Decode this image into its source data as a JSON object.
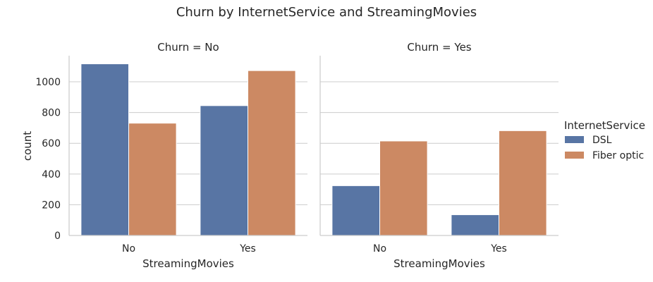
{
  "chart_data": {
    "type": "bar",
    "title": "Churn by InternetService and StreamingMovies",
    "ylabel": "count",
    "ylim": [
      0,
      1170
    ],
    "yticks": [
      0,
      200,
      400,
      600,
      800,
      1000
    ],
    "grid": true,
    "legend": {
      "title": "InternetService",
      "placement": "right",
      "entries": [
        "DSL",
        "Fiber optic"
      ]
    },
    "colors": {
      "DSL": "#5875a4",
      "Fiber optic": "#cc8963"
    },
    "panels": [
      {
        "title": "Churn = No",
        "xlabel": "StreamingMovies",
        "categories": [
          "No",
          "Yes"
        ],
        "series": [
          {
            "name": "DSL",
            "values": [
              1117,
              845
            ]
          },
          {
            "name": "Fiber optic",
            "values": [
              731,
              1073
            ]
          }
        ]
      },
      {
        "title": "Churn = Yes",
        "xlabel": "StreamingMovies",
        "categories": [
          "No",
          "Yes"
        ],
        "series": [
          {
            "name": "DSL",
            "values": [
              324,
              135
            ]
          },
          {
            "name": "Fiber optic",
            "values": [
              615,
              682
            ]
          }
        ]
      }
    ]
  }
}
